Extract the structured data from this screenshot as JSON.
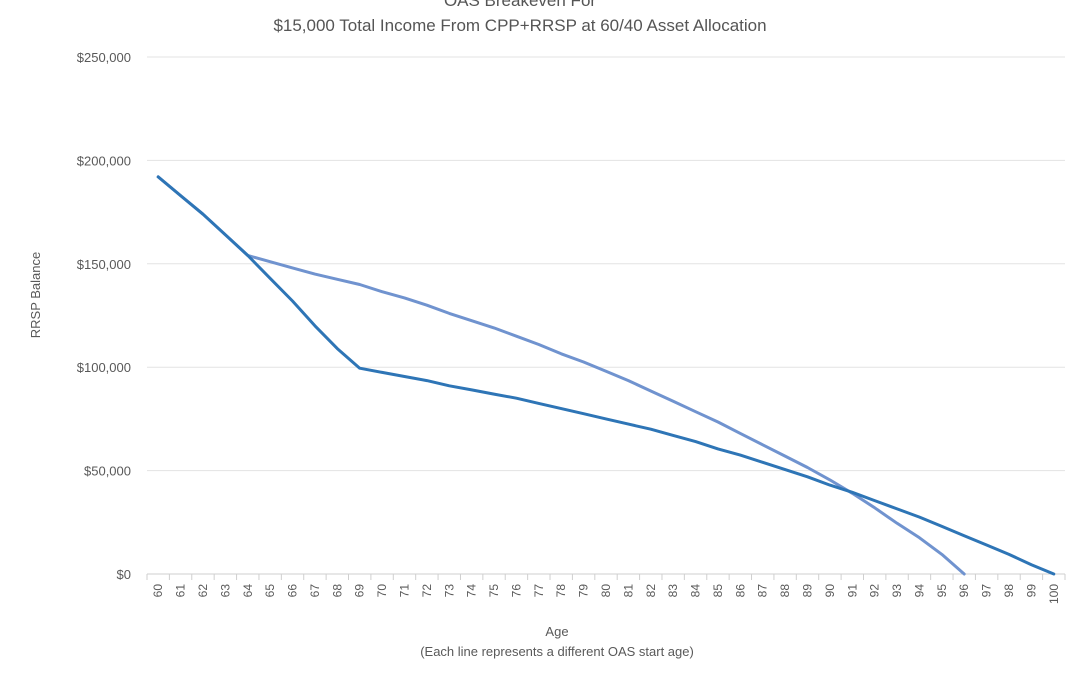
{
  "chart_data": {
    "type": "line",
    "title": "OAS Breakeven For",
    "subtitle": "$15,000 Total Income From CPP+RRSP at 60/40 Asset Allocation",
    "xlabel": "Age",
    "xlabel_note": "(Each line represents a different OAS start age)",
    "ylabel": "RRSP Balance",
    "ylim": [
      0,
      250000
    ],
    "y_ticks": [
      0,
      50000,
      100000,
      150000,
      200000,
      250000
    ],
    "y_tick_labels": [
      "$0",
      "$50,000",
      "$100,000",
      "$150,000",
      "$200,000",
      "$250,000"
    ],
    "x": [
      60,
      61,
      62,
      63,
      64,
      65,
      66,
      67,
      68,
      69,
      70,
      71,
      72,
      73,
      74,
      75,
      76,
      77,
      78,
      79,
      80,
      81,
      82,
      83,
      84,
      85,
      86,
      87,
      88,
      89,
      90,
      91,
      92,
      93,
      94,
      95,
      96,
      97,
      98,
      99,
      100
    ],
    "grid": true,
    "legend": "none",
    "series": [
      {
        "color": "#2e75b6",
        "values": [
          192000,
          183000,
          174000,
          164000,
          154000,
          143000,
          132000,
          120000,
          109000,
          99500,
          97500,
          95500,
          93500,
          91000,
          89000,
          87000,
          85000,
          82500,
          80000,
          77500,
          75000,
          72500,
          70000,
          67000,
          64000,
          60500,
          57500,
          54000,
          50500,
          47000,
          43000,
          39500,
          35500,
          31500,
          27500,
          23000,
          18500,
          14000,
          9500,
          4500,
          0
        ],
        "stroke_width": 3
      },
      {
        "color": "#7093cf",
        "values": [
          192000,
          183000,
          174000,
          164000,
          154000,
          151000,
          148000,
          145000,
          142500,
          140000,
          136500,
          133500,
          130000,
          126000,
          122500,
          119000,
          115000,
          111000,
          106500,
          102500,
          98000,
          93500,
          88500,
          83500,
          78500,
          73500,
          68000,
          62500,
          57000,
          51500,
          45500,
          39000,
          32000,
          24500,
          17500,
          9500,
          0,
          null,
          null,
          null,
          null
        ],
        "stroke_width": 3
      }
    ]
  }
}
